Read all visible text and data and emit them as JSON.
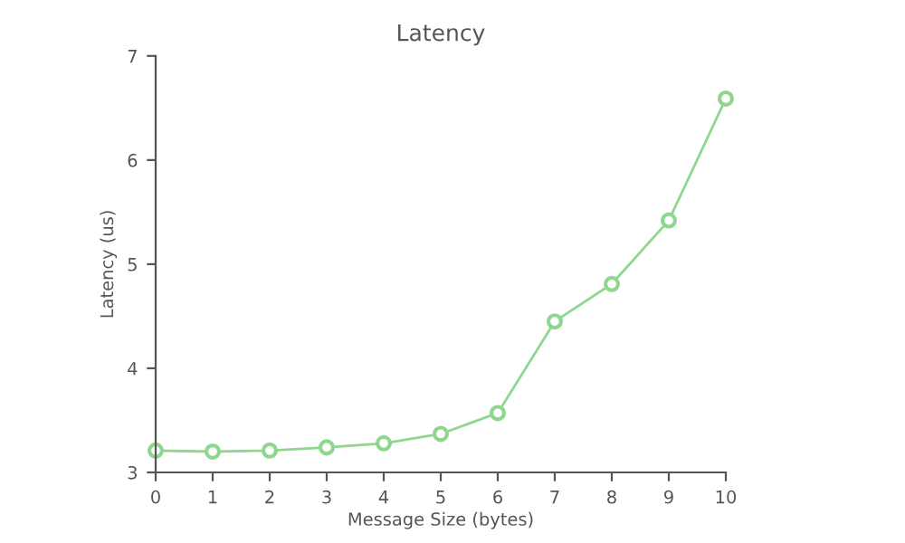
{
  "chart_data": {
    "type": "line",
    "title": "Latency",
    "xlabel": "Message Size (bytes)",
    "ylabel": "Latency (us)",
    "x": [
      0,
      1,
      2,
      3,
      4,
      5,
      6,
      7,
      8,
      9,
      10
    ],
    "series": [
      {
        "color": "#8fd68f",
        "values": [
          3.21,
          3.2,
          3.21,
          3.24,
          3.28,
          3.37,
          3.57,
          4.45,
          4.81,
          5.42,
          6.59
        ]
      }
    ],
    "xlim": [
      0,
      10
    ],
    "xticks": [
      0,
      1,
      2,
      3,
      4,
      5,
      6,
      7,
      8,
      9,
      10
    ],
    "ylim": [
      3,
      7
    ],
    "yticks": [
      3,
      4,
      5,
      6,
      7
    ],
    "grid": false,
    "marker": "circle",
    "line_style": "solid"
  }
}
